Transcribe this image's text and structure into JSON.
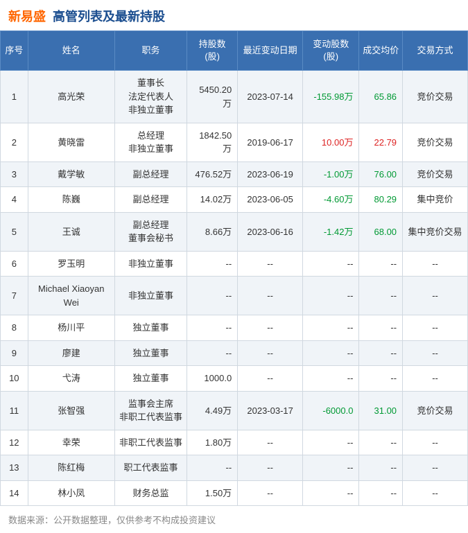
{
  "header": {
    "company": "新易盛",
    "title": "高管列表及最新持股"
  },
  "columns": {
    "idx": "序号",
    "name": "姓名",
    "position": "职务",
    "shares": "持股数\n(股)",
    "date": "最近变动日期",
    "change": "变动股数\n(股)",
    "price": "成交均价",
    "method": "交易方式"
  },
  "rows": [
    {
      "idx": "1",
      "name": "高光荣",
      "position": "董事长\n法定代表人\n非独立董事",
      "shares": "5450.20万",
      "date": "2023-07-14",
      "change": "-155.98万",
      "changeCls": "neg",
      "price": "65.86",
      "priceCls": "neg",
      "method": "竞价交易"
    },
    {
      "idx": "2",
      "name": "黄晓雷",
      "position": "总经理\n非独立董事",
      "shares": "1842.50万",
      "date": "2019-06-17",
      "change": "10.00万",
      "changeCls": "pos",
      "price": "22.79",
      "priceCls": "pos",
      "method": "竞价交易"
    },
    {
      "idx": "3",
      "name": "戴学敏",
      "position": "副总经理",
      "shares": "476.52万",
      "date": "2023-06-19",
      "change": "-1.00万",
      "changeCls": "neg",
      "price": "76.00",
      "priceCls": "neg",
      "method": "竞价交易"
    },
    {
      "idx": "4",
      "name": "陈巍",
      "position": "副总经理",
      "shares": "14.02万",
      "date": "2023-06-05",
      "change": "-4.60万",
      "changeCls": "neg",
      "price": "80.29",
      "priceCls": "neg",
      "method": "集中竞价"
    },
    {
      "idx": "5",
      "name": "王诚",
      "position": "副总经理\n董事会秘书",
      "shares": "8.66万",
      "date": "2023-06-16",
      "change": "-1.42万",
      "changeCls": "neg",
      "price": "68.00",
      "priceCls": "neg",
      "method": "集中竞价交易"
    },
    {
      "idx": "6",
      "name": "罗玉明",
      "position": "非独立董事",
      "shares": "--",
      "date": "--",
      "change": "--",
      "changeCls": "",
      "price": "--",
      "priceCls": "",
      "method": "--"
    },
    {
      "idx": "7",
      "name": "Michael Xiaoyan Wei",
      "position": "非独立董事",
      "shares": "--",
      "date": "--",
      "change": "--",
      "changeCls": "",
      "price": "--",
      "priceCls": "",
      "method": "--"
    },
    {
      "idx": "8",
      "name": "杨川平",
      "position": "独立董事",
      "shares": "--",
      "date": "--",
      "change": "--",
      "changeCls": "",
      "price": "--",
      "priceCls": "",
      "method": "--"
    },
    {
      "idx": "9",
      "name": "廖建",
      "position": "独立董事",
      "shares": "--",
      "date": "--",
      "change": "--",
      "changeCls": "",
      "price": "--",
      "priceCls": "",
      "method": "--"
    },
    {
      "idx": "10",
      "name": "弋涛",
      "position": "独立董事",
      "shares": "1000.0",
      "date": "--",
      "change": "--",
      "changeCls": "",
      "price": "--",
      "priceCls": "",
      "method": "--"
    },
    {
      "idx": "11",
      "name": "张智强",
      "position": "监事会主席\n非职工代表监事",
      "shares": "4.49万",
      "date": "2023-03-17",
      "change": "-6000.0",
      "changeCls": "neg",
      "price": "31.00",
      "priceCls": "neg",
      "method": "竞价交易"
    },
    {
      "idx": "12",
      "name": "幸荣",
      "position": "非职工代表监事",
      "shares": "1.80万",
      "date": "--",
      "change": "--",
      "changeCls": "",
      "price": "--",
      "priceCls": "",
      "method": "--"
    },
    {
      "idx": "13",
      "name": "陈红梅",
      "position": "职工代表监事",
      "shares": "--",
      "date": "--",
      "change": "--",
      "changeCls": "",
      "price": "--",
      "priceCls": "",
      "method": "--"
    },
    {
      "idx": "14",
      "name": "林小凤",
      "position": "财务总监",
      "shares": "1.50万",
      "date": "--",
      "change": "--",
      "changeCls": "",
      "price": "--",
      "priceCls": "",
      "method": "--"
    }
  ],
  "footer": "数据来源：公开数据整理，仅供参考不构成投资建议"
}
